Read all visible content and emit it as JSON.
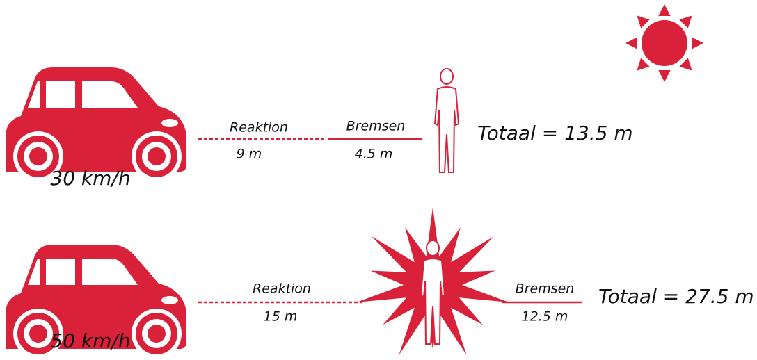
{
  "rows": [
    {
      "speed": "30 km/h",
      "reaction_label": "Reaktion",
      "reaction_distance": "9 m",
      "braking_label": "Bremsen",
      "braking_distance": "4.5 m",
      "total": "Totaal = 13.5 m"
    },
    {
      "speed": "50 km/h",
      "reaction_label": "Reaktion",
      "reaction_distance": "15 m",
      "braking_label": "Bremsen",
      "braking_distance": "12.5 m",
      "total": "Totaal = 27.5 m"
    }
  ]
}
